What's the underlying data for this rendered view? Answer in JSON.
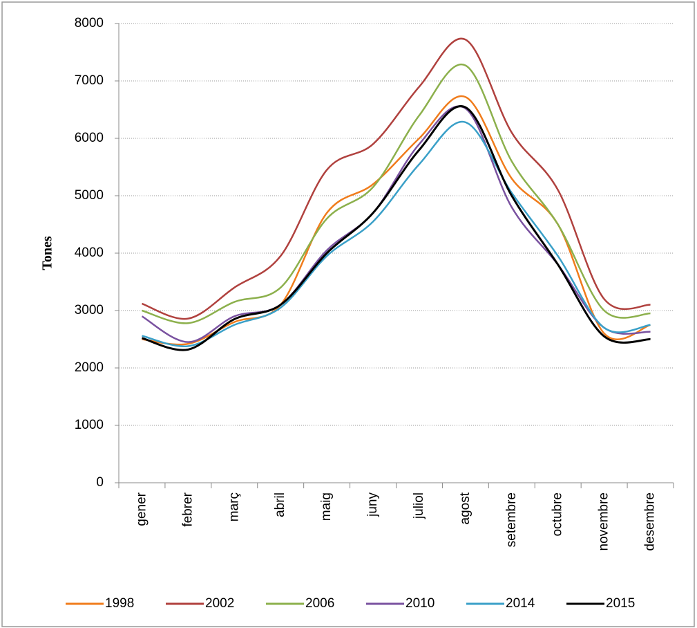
{
  "chart_data": {
    "type": "line",
    "y_label": "Tones",
    "categories": [
      "gener",
      "febrer",
      "març",
      "abril",
      "maig",
      "juny",
      "juliol",
      "agost",
      "setembre",
      "octubre",
      "novembre",
      "desembre"
    ],
    "series": [
      {
        "name": "1998",
        "color": "#f07c1c",
        "values": [
          2500,
          2420,
          2800,
          3100,
          4700,
          5200,
          6000,
          6720,
          5300,
          4500,
          2600,
          2750
        ]
      },
      {
        "name": "2002",
        "color": "#b0413e",
        "values": [
          3120,
          2860,
          3400,
          3950,
          5450,
          5900,
          6900,
          7720,
          6100,
          5100,
          3200,
          3100
        ]
      },
      {
        "name": "2006",
        "color": "#8cb04c",
        "values": [
          3000,
          2780,
          3150,
          3400,
          4600,
          5150,
          6400,
          7270,
          5600,
          4500,
          3000,
          2950
        ]
      },
      {
        "name": "2010",
        "color": "#7a52a0",
        "values": [
          2900,
          2450,
          2900,
          3100,
          4050,
          4700,
          5900,
          6520,
          4800,
          3800,
          2700,
          2630
        ]
      },
      {
        "name": "2014",
        "color": "#3aa0c8",
        "values": [
          2560,
          2380,
          2750,
          3050,
          3950,
          4550,
          5550,
          6280,
          5050,
          3950,
          2700,
          2750
        ]
      },
      {
        "name": "2015",
        "color": "#000000",
        "values": [
          2520,
          2320,
          2850,
          3100,
          4000,
          4700,
          5800,
          6540,
          5000,
          3800,
          2550,
          2500
        ]
      }
    ],
    "ylim": [
      0,
      8000
    ],
    "yticks": [
      0,
      1000,
      2000,
      3000,
      4000,
      5000,
      6000,
      7000,
      8000
    ],
    "grid": true,
    "legend": "bottom"
  }
}
